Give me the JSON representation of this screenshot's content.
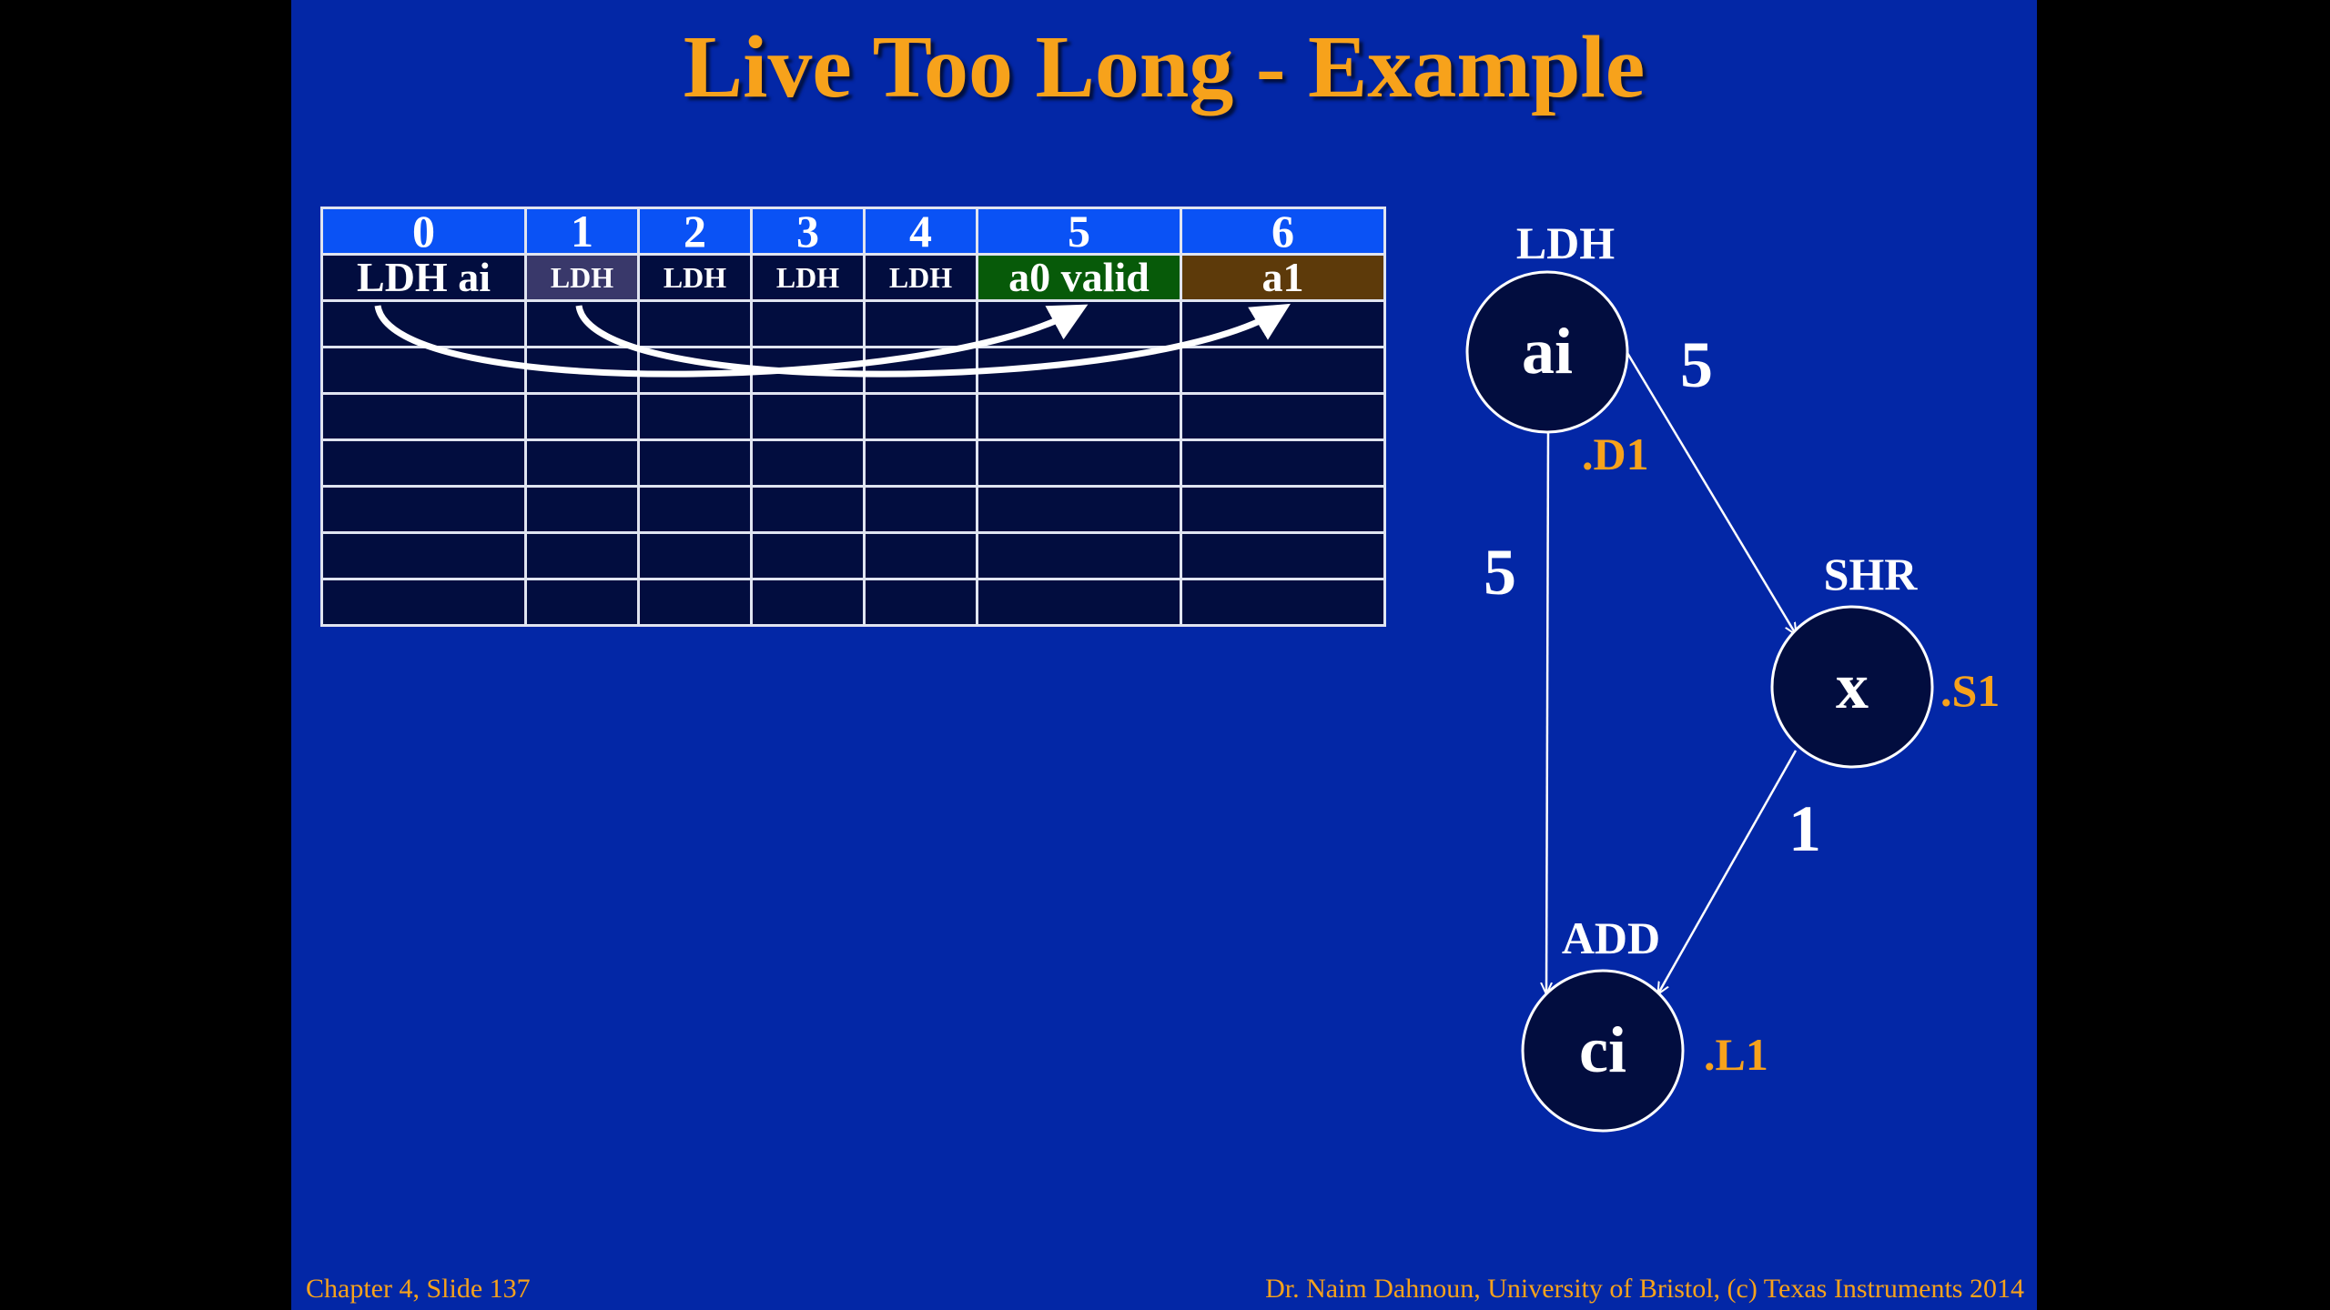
{
  "title": "Live Too Long - Example",
  "schedule": {
    "cycles": [
      "0",
      "1",
      "2",
      "3",
      "4",
      "5",
      "6"
    ],
    "instructions": [
      "LDH ai",
      "LDH",
      "LDH",
      "LDH",
      "LDH",
      "a0 valid",
      "a1"
    ],
    "colors": {
      "header": "#0a52f5",
      "cell": "#020d3f",
      "valid": "#075a09",
      "a1": "#5d3a0a"
    }
  },
  "graph": {
    "nodes": [
      {
        "id": "ai",
        "label": "ai",
        "op": "LDH",
        "unit": ".D1"
      },
      {
        "id": "x",
        "label": "x",
        "op": "SHR",
        "unit": ".S1"
      },
      {
        "id": "ci",
        "label": "ci",
        "op": "ADD",
        "unit": ".L1"
      }
    ],
    "edges": [
      {
        "from": "ai",
        "to": "x",
        "latency": "5"
      },
      {
        "from": "ai",
        "to": "ci",
        "latency": "5"
      },
      {
        "from": "x",
        "to": "ci",
        "latency": "1"
      }
    ]
  },
  "footer": {
    "left": "Chapter 4, Slide 137",
    "right": "Dr. Naim Dahnoun, University of Bristol,  (c) Texas Instruments 2014"
  }
}
